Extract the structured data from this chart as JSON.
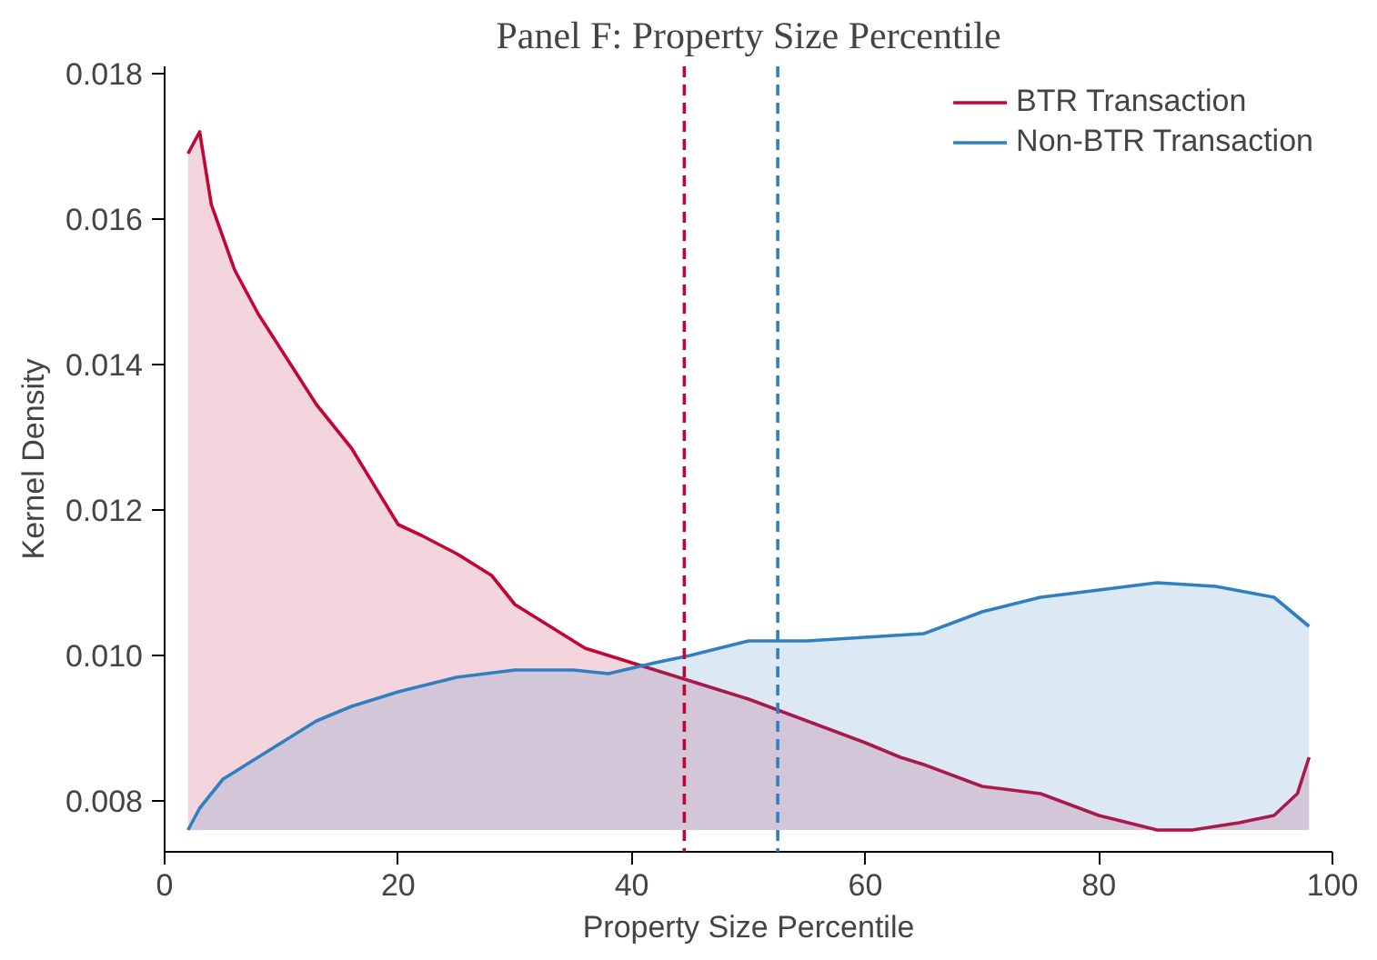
{
  "chart_data": {
    "type": "area",
    "title": "Panel F: Property Size Percentile",
    "xlabel": "Property Size Percentile",
    "ylabel": "Kernel Density",
    "xlim": [
      0,
      100
    ],
    "xticks": [
      0,
      20,
      40,
      60,
      80,
      100
    ],
    "ylim": [
      0.0073,
      0.0181
    ],
    "yticks": [
      {
        "value": 0.008,
        "label": "0.008"
      },
      {
        "value": 0.01,
        "label": "0.010"
      },
      {
        "value": 0.012,
        "label": "0.012"
      },
      {
        "value": 0.014,
        "label": "0.014"
      },
      {
        "value": 0.016,
        "label": "0.016"
      },
      {
        "value": 0.018,
        "label": "0.018"
      }
    ],
    "grid": false,
    "legend": "top right",
    "line_style": "solid",
    "series": [
      {
        "name": "BTR Transaction",
        "color": "#c10534",
        "x": [
          2,
          3,
          4,
          6,
          8,
          10,
          13,
          16,
          20,
          22,
          25,
          28,
          30,
          33,
          36,
          40,
          44,
          48,
          50,
          55,
          60,
          63,
          65,
          70,
          75,
          80,
          85,
          88,
          92,
          95,
          97,
          98
        ],
        "values": [
          0.0169,
          0.0172,
          0.0162,
          0.0153,
          0.0147,
          0.0142,
          0.01345,
          0.01285,
          0.0118,
          0.01165,
          0.0114,
          0.0111,
          0.0107,
          0.0104,
          0.0101,
          0.0099,
          0.0097,
          0.0095,
          0.0094,
          0.0091,
          0.0088,
          0.0086,
          0.0085,
          0.0082,
          0.0081,
          0.0078,
          0.0076,
          0.0076,
          0.0077,
          0.0078,
          0.0081,
          0.0086
        ]
      },
      {
        "name": "Non-BTR Transaction",
        "color": "#2f7fc1",
        "x": [
          2,
          3,
          5,
          7,
          10,
          13,
          16,
          20,
          25,
          30,
          35,
          38,
          42,
          45,
          50,
          55,
          60,
          65,
          70,
          75,
          80,
          85,
          90,
          95,
          98
        ],
        "values": [
          0.0076,
          0.0079,
          0.0083,
          0.0085,
          0.0088,
          0.0091,
          0.0093,
          0.0095,
          0.0097,
          0.0098,
          0.0098,
          0.00975,
          0.0099,
          0.01,
          0.0102,
          0.0102,
          0.01025,
          0.0103,
          0.0106,
          0.0108,
          0.0109,
          0.011,
          0.01095,
          0.0108,
          0.0104
        ]
      }
    ],
    "ref_lines": [
      {
        "axis": "x",
        "value": 44.5,
        "color": "#c10534",
        "line_style": "dashed"
      },
      {
        "axis": "x",
        "value": 52.5,
        "color": "#2f7fc1",
        "line_style": "dashed"
      }
    ]
  }
}
